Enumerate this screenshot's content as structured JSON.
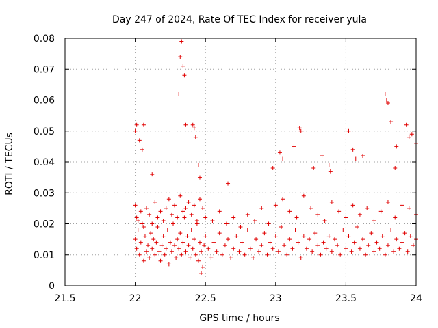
{
  "chart_data": {
    "type": "scatter",
    "title": "Day 247 of 2024, Rate Of TEC Index for receiver yula",
    "xlabel": "GPS time / hours",
    "ylabel": "ROTI / TECUs",
    "xlim": [
      21.5,
      24
    ],
    "ylim": [
      0,
      0.08
    ],
    "xticks": [
      21.5,
      22,
      22.5,
      23,
      23.5,
      24
    ],
    "xtick_labels": [
      "21.5",
      "22",
      "22.5",
      "23",
      "23.5",
      "24"
    ],
    "yticks": [
      0,
      0.01,
      0.02,
      0.03,
      0.04,
      0.05,
      0.06,
      0.07,
      0.08
    ],
    "ytick_labels": [
      "0",
      "0.01",
      "0.02",
      "0.03",
      "0.04",
      "0.05",
      "0.06",
      "0.07",
      "0.08"
    ],
    "grid": true,
    "marker": "+",
    "marker_color": "#e00000",
    "series": [
      {
        "name": "ROTI",
        "x": [
          22.0,
          22.01,
          22.02,
          22.03,
          22.04,
          22.05,
          22.06,
          22.07,
          22.08,
          22.09,
          22.1,
          22.11,
          22.12,
          22.13,
          22.14,
          22.15,
          22.16,
          22.17,
          22.18,
          22.19,
          22.2,
          22.21,
          22.22,
          22.23,
          22.24,
          22.25,
          22.26,
          22.27,
          22.28,
          22.29,
          22.3,
          22.31,
          22.32,
          22.33,
          22.34,
          22.35,
          22.36,
          22.37,
          22.38,
          22.39,
          22.4,
          22.41,
          22.42,
          22.43,
          22.44,
          22.45,
          22.46,
          22.47,
          22.48,
          22.49,
          22.5,
          22.52,
          22.54,
          22.56,
          22.58,
          22.6,
          22.62,
          22.64,
          22.66,
          22.68,
          22.7,
          22.72,
          22.74,
          22.76,
          22.78,
          22.8,
          22.82,
          22.84,
          22.86,
          22.88,
          22.9,
          22.92,
          22.94,
          22.96,
          22.98,
          23.0,
          23.02,
          23.04,
          23.06,
          23.08,
          23.1,
          23.12,
          23.14,
          23.16,
          23.18,
          23.2,
          23.22,
          23.24,
          23.26,
          23.28,
          23.3,
          23.32,
          23.34,
          23.36,
          23.38,
          23.4,
          23.42,
          23.44,
          23.46,
          23.48,
          23.5,
          23.52,
          23.54,
          23.56,
          23.58,
          23.6,
          23.62,
          23.64,
          23.66,
          23.68,
          23.7,
          23.72,
          23.74,
          23.76,
          23.78,
          23.8,
          23.82,
          23.84,
          23.86,
          23.88,
          23.9,
          23.92,
          23.94,
          23.96,
          23.98,
          24.0,
          22.0,
          22.01,
          22.02,
          22.04,
          22.06,
          22.08,
          22.1,
          22.12,
          22.14,
          22.16,
          22.18,
          22.2,
          22.22,
          22.24,
          22.26,
          22.28,
          22.3,
          22.32,
          22.34,
          22.36,
          22.38,
          22.4,
          22.42,
          22.44,
          22.46,
          22.48,
          22.5,
          22.55,
          22.6,
          22.65,
          22.7,
          22.75,
          22.8,
          22.85,
          22.9,
          22.95,
          23.0,
          23.05,
          23.1,
          23.15,
          23.2,
          23.25,
          23.3,
          23.35,
          23.4,
          23.45,
          23.5,
          23.55,
          23.6,
          23.65,
          23.7,
          23.75,
          23.8,
          23.85,
          23.9,
          23.95,
          24.0,
          22.0,
          22.01,
          22.03,
          22.05,
          22.06,
          22.12,
          22.31,
          22.32,
          22.33,
          22.34,
          22.35,
          22.36,
          22.42,
          22.43,
          22.66,
          22.98,
          23.03,
          23.05,
          23.13,
          23.17,
          23.18,
          23.27,
          23.33,
          23.52,
          23.55,
          23.57,
          23.78,
          23.79,
          23.8,
          23.82,
          23.86,
          23.93,
          23.95,
          23.97,
          24.0,
          22.41,
          22.45,
          22.46,
          23.38,
          23.39,
          23.62,
          23.85,
          22.47
        ],
        "y": [
          0.015,
          0.012,
          0.018,
          0.01,
          0.014,
          0.02,
          0.008,
          0.016,
          0.011,
          0.013,
          0.009,
          0.017,
          0.012,
          0.015,
          0.01,
          0.014,
          0.019,
          0.011,
          0.008,
          0.013,
          0.016,
          0.01,
          0.012,
          0.018,
          0.007,
          0.014,
          0.011,
          0.02,
          0.013,
          0.009,
          0.015,
          0.012,
          0.017,
          0.01,
          0.014,
          0.022,
          0.011,
          0.016,
          0.013,
          0.009,
          0.018,
          0.012,
          0.015,
          0.01,
          0.02,
          0.008,
          0.014,
          0.011,
          0.006,
          0.013,
          0.016,
          0.012,
          0.009,
          0.014,
          0.011,
          0.017,
          0.01,
          0.013,
          0.015,
          0.009,
          0.012,
          0.016,
          0.011,
          0.014,
          0.01,
          0.018,
          0.012,
          0.009,
          0.015,
          0.011,
          0.013,
          0.017,
          0.01,
          0.014,
          0.012,
          0.016,
          0.011,
          0.019,
          0.013,
          0.01,
          0.015,
          0.012,
          0.018,
          0.014,
          0.009,
          0.016,
          0.012,
          0.015,
          0.011,
          0.017,
          0.013,
          0.01,
          0.014,
          0.012,
          0.016,
          0.011,
          0.015,
          0.013,
          0.01,
          0.018,
          0.012,
          0.016,
          0.011,
          0.014,
          0.019,
          0.012,
          0.015,
          0.01,
          0.013,
          0.017,
          0.011,
          0.014,
          0.012,
          0.016,
          0.01,
          0.013,
          0.018,
          0.011,
          0.015,
          0.012,
          0.014,
          0.017,
          0.011,
          0.016,
          0.013,
          0.015,
          0.026,
          0.022,
          0.021,
          0.024,
          0.019,
          0.025,
          0.023,
          0.02,
          0.027,
          0.022,
          0.024,
          0.021,
          0.025,
          0.028,
          0.023,
          0.026,
          0.022,
          0.029,
          0.024,
          0.025,
          0.027,
          0.023,
          0.026,
          0.021,
          0.028,
          0.025,
          0.022,
          0.021,
          0.024,
          0.02,
          0.022,
          0.019,
          0.023,
          0.021,
          0.025,
          0.02,
          0.026,
          0.028,
          0.024,
          0.022,
          0.029,
          0.025,
          0.023,
          0.021,
          0.027,
          0.024,
          0.022,
          0.026,
          0.023,
          0.025,
          0.021,
          0.024,
          0.027,
          0.022,
          0.026,
          0.025,
          0.023,
          0.05,
          0.052,
          0.047,
          0.044,
          0.052,
          0.036,
          0.062,
          0.074,
          0.079,
          0.071,
          0.068,
          0.052,
          0.051,
          0.048,
          0.033,
          0.038,
          0.043,
          0.041,
          0.045,
          0.051,
          0.05,
          0.038,
          0.042,
          0.05,
          0.044,
          0.041,
          0.062,
          0.06,
          0.059,
          0.053,
          0.045,
          0.052,
          0.048,
          0.049,
          0.046,
          0.052,
          0.039,
          0.035,
          0.039,
          0.037,
          0.042,
          0.038,
          0.004
        ]
      }
    ]
  }
}
